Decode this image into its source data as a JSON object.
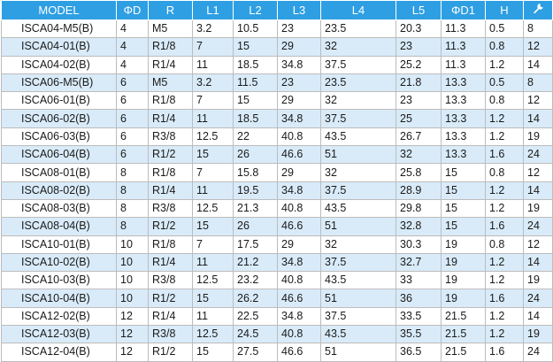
{
  "table": {
    "headers": [
      "MODEL",
      "ΦD",
      "R",
      "L1",
      "L2",
      "L3",
      "L4",
      "L5",
      "ΦD1",
      "H",
      ""
    ],
    "last_header_icon": "wrench-icon",
    "colors": {
      "header_bg": "#2e9fe3",
      "alt_row_bg": "#d9ebf9",
      "row_bg": "#ffffff"
    },
    "rows": [
      [
        "ISCA04-M5(B)",
        "4",
        "M5",
        "3.2",
        "10.5",
        "23",
        "23.5",
        "20.3",
        "11.3",
        "0.5",
        "8"
      ],
      [
        "ISCA04-01(B)",
        "4",
        "R1/8",
        "7",
        "15",
        "29",
        "32",
        "23",
        "11.3",
        "0.8",
        "12"
      ],
      [
        "ISCA04-02(B)",
        "4",
        "R1/4",
        "11",
        "18.5",
        "34.8",
        "37.5",
        "25.2",
        "11.3",
        "1.2",
        "14"
      ],
      [
        "ISCA06-M5(B)",
        "6",
        "M5",
        "3.2",
        "11.5",
        "23",
        "23.5",
        "21.8",
        "13.3",
        "0.5",
        "8"
      ],
      [
        "ISCA06-01(B)",
        "6",
        "R1/8",
        "7",
        "15",
        "29",
        "32",
        "23",
        "13.3",
        "0.8",
        "12"
      ],
      [
        "ISCA06-02(B)",
        "6",
        "R1/4",
        "11",
        "18.5",
        "34.8",
        "37.5",
        "25",
        "13.3",
        "1.2",
        "14"
      ],
      [
        "ISCA06-03(B)",
        "6",
        "R3/8",
        "12.5",
        "22",
        "40.8",
        "43.5",
        "26.7",
        "13.3",
        "1.2",
        "19"
      ],
      [
        "ISCA06-04(B)",
        "6",
        "R1/2",
        "15",
        "26",
        "46.6",
        "51",
        "32",
        "13.3",
        "1.6",
        "24"
      ],
      [
        "ISCA08-01(B)",
        "8",
        "R1/8",
        "7",
        "15.8",
        "29",
        "32",
        "25.8",
        "15",
        "0.8",
        "12"
      ],
      [
        "ISCA08-02(B)",
        "8",
        "R1/4",
        "11",
        "19.5",
        "34.8",
        "37.5",
        "28.9",
        "15",
        "1.2",
        "14"
      ],
      [
        "ISCA08-03(B)",
        "8",
        "R3/8",
        "12.5",
        "21.3",
        "40.8",
        "43.5",
        "29.8",
        "15",
        "1.2",
        "19"
      ],
      [
        "ISCA08-04(B)",
        "8",
        "R1/2",
        "15",
        "26",
        "46.6",
        "51",
        "32.8",
        "15",
        "1.6",
        "24"
      ],
      [
        "ISCA10-01(B)",
        "10",
        "R1/8",
        "7",
        "17.5",
        "29",
        "32",
        "30.3",
        "19",
        "0.8",
        "12"
      ],
      [
        "ISCA10-02(B)",
        "10",
        "R1/4",
        "11",
        "21.2",
        "34.8",
        "37.5",
        "32.7",
        "19",
        "1.2",
        "14"
      ],
      [
        "ISCA10-03(B)",
        "10",
        "R3/8",
        "12.5",
        "23.2",
        "40.8",
        "43.5",
        "33",
        "19",
        "1.2",
        "19"
      ],
      [
        "ISCA10-04(B)",
        "10",
        "R1/2",
        "15",
        "26.2",
        "46.6",
        "51",
        "36",
        "19",
        "1.6",
        "24"
      ],
      [
        "ISCA12-02(B)",
        "12",
        "R1/4",
        "11",
        "22.5",
        "34.8",
        "37.5",
        "33.5",
        "21.5",
        "1.2",
        "14"
      ],
      [
        "ISCA12-03(B)",
        "12",
        "R3/8",
        "12.5",
        "24.5",
        "40.8",
        "43.5",
        "35.5",
        "21.5",
        "1.2",
        "19"
      ],
      [
        "ISCA12-04(B)",
        "12",
        "R1/2",
        "15",
        "27.5",
        "46.6",
        "51",
        "36.5",
        "21.5",
        "1.6",
        "24"
      ]
    ]
  }
}
